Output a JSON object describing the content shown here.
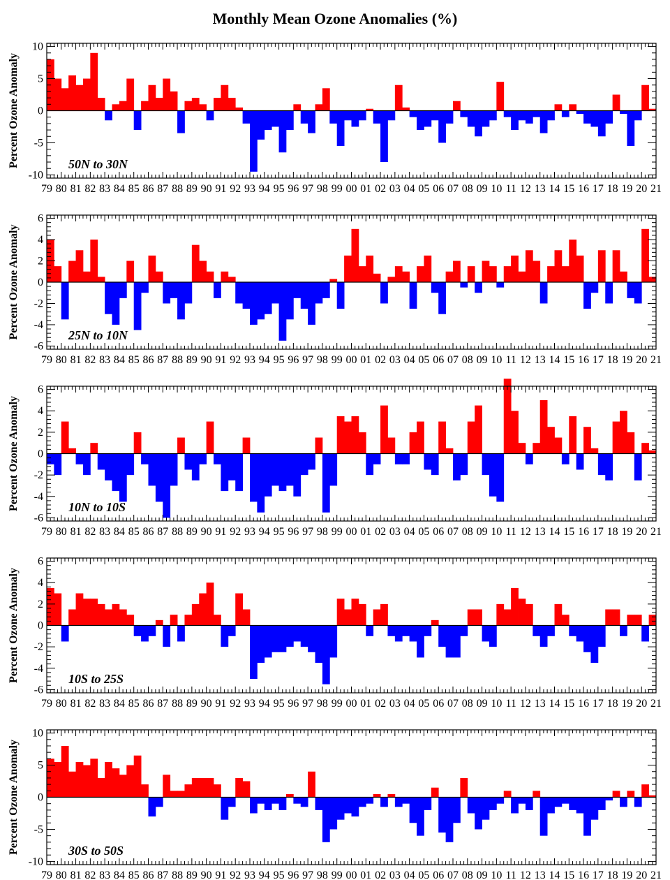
{
  "title": "Monthly Mean Ozone Anomalies (%)",
  "colors": {
    "positive": "#ff0000",
    "negative": "#0000ff",
    "axis": "#000000"
  },
  "chart_data": [
    {
      "type": "bar",
      "region": "50N to 30N",
      "ylabel": "Percent Ozone Anomaly",
      "ylim": [
        -10.5,
        10.5
      ],
      "yticks": [
        -10,
        -5,
        0,
        5,
        10
      ],
      "xlim": [
        1979,
        2021
      ],
      "xticklabels": [
        "79",
        "80",
        "81",
        "82",
        "83",
        "84",
        "85",
        "86",
        "87",
        "88",
        "89",
        "90",
        "91",
        "92",
        "93",
        "94",
        "95",
        "96",
        "97",
        "98",
        "99",
        "00",
        "01",
        "02",
        "03",
        "04",
        "05",
        "06",
        "07",
        "08",
        "09",
        "10",
        "11",
        "12",
        "13",
        "14",
        "15",
        "16",
        "17",
        "18",
        "19",
        "20",
        "21"
      ],
      "x": [
        1979.0,
        1979.5,
        1980.0,
        1980.5,
        1981.0,
        1981.5,
        1982.0,
        1982.5,
        1983.0,
        1983.5,
        1984.0,
        1984.5,
        1985.0,
        1985.5,
        1986.0,
        1986.5,
        1987.0,
        1987.5,
        1988.0,
        1988.5,
        1989.0,
        1989.5,
        1990.0,
        1990.5,
        1991.0,
        1991.5,
        1992.0,
        1992.5,
        1993.0,
        1993.5,
        1994.0,
        1994.5,
        1995.0,
        1995.5,
        1996.0,
        1996.5,
        1997.0,
        1997.5,
        1998.0,
        1998.5,
        1999.0,
        1999.5,
        2000.0,
        2000.5,
        2001.0,
        2001.5,
        2002.0,
        2002.5,
        2003.0,
        2003.5,
        2004.0,
        2004.5,
        2005.0,
        2005.5,
        2006.0,
        2006.5,
        2007.0,
        2007.5,
        2008.0,
        2008.5,
        2009.0,
        2009.5,
        2010.0,
        2010.5,
        2011.0,
        2011.5,
        2012.0,
        2012.5,
        2013.0,
        2013.5,
        2014.0,
        2014.5,
        2015.0,
        2015.5,
        2016.0,
        2016.5,
        2017.0,
        2017.5,
        2018.0,
        2018.5,
        2019.0,
        2019.5,
        2020.0,
        2020.5
      ],
      "values": [
        8.0,
        5.0,
        3.5,
        5.5,
        4.0,
        5.0,
        9.0,
        2.0,
        -1.5,
        1.0,
        1.5,
        5.0,
        -3.0,
        1.5,
        4.0,
        2.0,
        5.0,
        3.0,
        -3.5,
        1.5,
        2.0,
        1.0,
        -1.5,
        2.0,
        4.0,
        2.0,
        0.5,
        -2.0,
        -9.5,
        -4.5,
        -3.0,
        -2.5,
        -6.5,
        -3.0,
        1.0,
        -2.0,
        -3.5,
        1.0,
        3.5,
        -2.0,
        -5.5,
        -1.5,
        -2.5,
        -1.5,
        0.3,
        -2.0,
        -8.0,
        -1.5,
        4.0,
        0.5,
        -1.0,
        -3.0,
        -2.5,
        -1.5,
        -5.0,
        -2.0,
        1.5,
        -1.0,
        -2.5,
        -4.0,
        -2.5,
        -1.5,
        4.5,
        -1.0,
        -3.0,
        -1.5,
        -2.0,
        -1.0,
        -3.5,
        -1.5,
        1.0,
        -1.0,
        1.0,
        -0.5,
        -2.0,
        -2.5,
        -4.0,
        -2.0,
        2.5,
        -0.5,
        -5.5,
        -1.5,
        4.0,
        0.3
      ]
    },
    {
      "type": "bar",
      "region": "25N to 10N",
      "ylabel": "Percent Ozone Anomaly",
      "ylim": [
        -6.3,
        6.3
      ],
      "yticks": [
        -6,
        -4,
        -2,
        0,
        2,
        4,
        6
      ],
      "xlim": [
        1979,
        2021
      ],
      "xticklabels": [
        "79",
        "80",
        "81",
        "82",
        "83",
        "84",
        "85",
        "86",
        "87",
        "88",
        "89",
        "90",
        "91",
        "92",
        "93",
        "94",
        "95",
        "96",
        "97",
        "98",
        "99",
        "00",
        "01",
        "02",
        "03",
        "04",
        "05",
        "06",
        "07",
        "08",
        "09",
        "10",
        "11",
        "12",
        "13",
        "14",
        "15",
        "16",
        "17",
        "18",
        "19",
        "20",
        "21"
      ],
      "x": [
        1979.0,
        1979.5,
        1980.0,
        1980.5,
        1981.0,
        1981.5,
        1982.0,
        1982.5,
        1983.0,
        1983.5,
        1984.0,
        1984.5,
        1985.0,
        1985.5,
        1986.0,
        1986.5,
        1987.0,
        1987.5,
        1988.0,
        1988.5,
        1989.0,
        1989.5,
        1990.0,
        1990.5,
        1991.0,
        1991.5,
        1992.0,
        1992.5,
        1993.0,
        1993.5,
        1994.0,
        1994.5,
        1995.0,
        1995.5,
        1996.0,
        1996.5,
        1997.0,
        1997.5,
        1998.0,
        1998.5,
        1999.0,
        1999.5,
        2000.0,
        2000.5,
        2001.0,
        2001.5,
        2002.0,
        2002.5,
        2003.0,
        2003.5,
        2004.0,
        2004.5,
        2005.0,
        2005.5,
        2006.0,
        2006.5,
        2007.0,
        2007.5,
        2008.0,
        2008.5,
        2009.0,
        2009.5,
        2010.0,
        2010.5,
        2011.0,
        2011.5,
        2012.0,
        2012.5,
        2013.0,
        2013.5,
        2014.0,
        2014.5,
        2015.0,
        2015.5,
        2016.0,
        2016.5,
        2017.0,
        2017.5,
        2018.0,
        2018.5,
        2019.0,
        2019.5,
        2020.0,
        2020.5
      ],
      "values": [
        4.0,
        1.5,
        -3.5,
        2.0,
        3.0,
        1.0,
        4.0,
        0.5,
        -3.0,
        -4.0,
        -1.5,
        2.0,
        -4.5,
        -1.0,
        2.5,
        1.0,
        -2.0,
        -1.5,
        -3.5,
        -2.0,
        3.5,
        2.0,
        1.0,
        -1.5,
        1.0,
        0.5,
        -2.0,
        -2.5,
        -4.0,
        -3.5,
        -3.0,
        -2.0,
        -5.5,
        -3.5,
        -1.5,
        -2.5,
        -4.0,
        -2.0,
        -1.5,
        0.3,
        -2.5,
        2.5,
        5.0,
        1.5,
        2.5,
        0.8,
        -2.0,
        0.5,
        1.5,
        1.0,
        -2.5,
        1.5,
        2.5,
        -1.0,
        -3.0,
        1.0,
        2.0,
        -0.5,
        1.5,
        -1.0,
        2.0,
        1.5,
        -0.5,
        1.5,
        2.5,
        1.0,
        3.0,
        2.0,
        -2.0,
        1.5,
        3.0,
        1.5,
        4.0,
        2.5,
        -2.5,
        -1.0,
        3.0,
        -2.0,
        3.0,
        1.0,
        -1.5,
        -2.0,
        5.0,
        0.5
      ]
    },
    {
      "type": "bar",
      "region": "10N to 10S",
      "ylabel": "Percent Ozone Anomaly",
      "ylim": [
        -6.3,
        6.3
      ],
      "yticks": [
        -6,
        -4,
        -2,
        0,
        2,
        4,
        6
      ],
      "xlim": [
        1979,
        2021
      ],
      "xticklabels": [
        "79",
        "80",
        "81",
        "82",
        "83",
        "84",
        "85",
        "86",
        "87",
        "88",
        "89",
        "90",
        "91",
        "92",
        "93",
        "94",
        "95",
        "96",
        "97",
        "98",
        "99",
        "00",
        "01",
        "02",
        "03",
        "04",
        "05",
        "06",
        "07",
        "08",
        "09",
        "10",
        "11",
        "12",
        "13",
        "14",
        "15",
        "16",
        "17",
        "18",
        "19",
        "20",
        "21"
      ],
      "x": [
        1979.0,
        1979.5,
        1980.0,
        1980.5,
        1981.0,
        1981.5,
        1982.0,
        1982.5,
        1983.0,
        1983.5,
        1984.0,
        1984.5,
        1985.0,
        1985.5,
        1986.0,
        1986.5,
        1987.0,
        1987.5,
        1988.0,
        1988.5,
        1989.0,
        1989.5,
        1990.0,
        1990.5,
        1991.0,
        1991.5,
        1992.0,
        1992.5,
        1993.0,
        1993.5,
        1994.0,
        1994.5,
        1995.0,
        1995.5,
        1996.0,
        1996.5,
        1997.0,
        1997.5,
        1998.0,
        1998.5,
        1999.0,
        1999.5,
        2000.0,
        2000.5,
        2001.0,
        2001.5,
        2002.0,
        2002.5,
        2003.0,
        2003.5,
        2004.0,
        2004.5,
        2005.0,
        2005.5,
        2006.0,
        2006.5,
        2007.0,
        2007.5,
        2008.0,
        2008.5,
        2009.0,
        2009.5,
        2010.0,
        2010.5,
        2011.0,
        2011.5,
        2012.0,
        2012.5,
        2013.0,
        2013.5,
        2014.0,
        2014.5,
        2015.0,
        2015.5,
        2016.0,
        2016.5,
        2017.0,
        2017.5,
        2018.0,
        2018.5,
        2019.0,
        2019.5,
        2020.0,
        2020.5
      ],
      "values": [
        -1.0,
        -2.0,
        3.0,
        0.5,
        -1.0,
        -2.0,
        1.0,
        -1.5,
        -2.5,
        -3.5,
        -4.5,
        -2.0,
        2.0,
        -1.0,
        -3.0,
        -4.5,
        -6.0,
        -3.0,
        1.5,
        -1.5,
        -2.5,
        -1.0,
        3.0,
        -1.0,
        -3.5,
        -2.5,
        -3.5,
        1.5,
        -4.5,
        -5.5,
        -4.0,
        -3.0,
        -3.5,
        -3.0,
        -4.0,
        -2.0,
        -1.5,
        1.5,
        -5.5,
        -3.0,
        3.5,
        3.0,
        3.5,
        2.0,
        -2.0,
        -1.0,
        4.5,
        1.5,
        -1.0,
        -1.0,
        2.0,
        3.0,
        -1.5,
        -2.0,
        3.0,
        0.5,
        -2.5,
        -2.0,
        3.0,
        4.5,
        -2.0,
        -4.0,
        -4.5,
        7.0,
        4.0,
        1.0,
        -1.0,
        1.0,
        5.0,
        2.5,
        1.5,
        -1.0,
        3.5,
        -1.5,
        2.5,
        0.5,
        -2.0,
        -2.5,
        3.0,
        4.0,
        2.0,
        -2.5,
        1.0,
        0.3
      ]
    },
    {
      "type": "bar",
      "region": "10S to 25S",
      "ylabel": "Percent Ozone Anomaly",
      "ylim": [
        -6.3,
        6.3
      ],
      "yticks": [
        -6,
        -4,
        -2,
        0,
        2,
        4,
        6
      ],
      "xlim": [
        1979,
        2021
      ],
      "xticklabels": [
        "79",
        "80",
        "81",
        "82",
        "83",
        "84",
        "85",
        "86",
        "87",
        "88",
        "89",
        "90",
        "91",
        "92",
        "93",
        "94",
        "95",
        "96",
        "97",
        "98",
        "99",
        "00",
        "01",
        "02",
        "03",
        "04",
        "05",
        "06",
        "07",
        "08",
        "09",
        "10",
        "11",
        "12",
        "13",
        "14",
        "15",
        "16",
        "17",
        "18",
        "19",
        "20",
        "21"
      ],
      "x": [
        1979.0,
        1979.5,
        1980.0,
        1980.5,
        1981.0,
        1981.5,
        1982.0,
        1982.5,
        1983.0,
        1983.5,
        1984.0,
        1984.5,
        1985.0,
        1985.5,
        1986.0,
        1986.5,
        1987.0,
        1987.5,
        1988.0,
        1988.5,
        1989.0,
        1989.5,
        1990.0,
        1990.5,
        1991.0,
        1991.5,
        1992.0,
        1992.5,
        1993.0,
        1993.5,
        1994.0,
        1994.5,
        1995.0,
        1995.5,
        1996.0,
        1996.5,
        1997.0,
        1997.5,
        1998.0,
        1998.5,
        1999.0,
        1999.5,
        2000.0,
        2000.5,
        2001.0,
        2001.5,
        2002.0,
        2002.5,
        2003.0,
        2003.5,
        2004.0,
        2004.5,
        2005.0,
        2005.5,
        2006.0,
        2006.5,
        2007.0,
        2007.5,
        2008.0,
        2008.5,
        2009.0,
        2009.5,
        2010.0,
        2010.5,
        2011.0,
        2011.5,
        2012.0,
        2012.5,
        2013.0,
        2013.5,
        2014.0,
        2014.5,
        2015.0,
        2015.5,
        2016.0,
        2016.5,
        2017.0,
        2017.5,
        2018.0,
        2018.5,
        2019.0,
        2019.5,
        2020.0,
        2020.5
      ],
      "values": [
        3.5,
        3.0,
        -1.5,
        1.5,
        3.0,
        2.5,
        2.5,
        2.0,
        1.5,
        2.0,
        1.5,
        1.0,
        -1.0,
        -1.5,
        -1.0,
        0.5,
        -2.0,
        1.0,
        -1.5,
        1.0,
        2.0,
        3.0,
        4.0,
        1.0,
        -2.0,
        -1.0,
        3.0,
        1.5,
        -5.0,
        -3.5,
        -3.0,
        -2.5,
        -2.5,
        -2.0,
        -1.5,
        -2.0,
        -2.5,
        -3.5,
        -5.5,
        -3.0,
        2.5,
        1.5,
        2.5,
        2.0,
        -1.0,
        1.5,
        2.0,
        -1.0,
        -1.5,
        -1.0,
        -1.5,
        -3.0,
        -1.0,
        0.5,
        -2.0,
        -3.0,
        -3.0,
        -1.0,
        1.5,
        1.5,
        -1.5,
        -2.0,
        2.0,
        1.5,
        3.5,
        2.5,
        2.0,
        -1.0,
        -2.0,
        -1.0,
        2.0,
        1.0,
        -1.0,
        -1.5,
        -2.5,
        -3.5,
        -2.0,
        1.5,
        1.5,
        -1.0,
        1.0,
        1.0,
        -1.5,
        1.0
      ]
    },
    {
      "type": "bar",
      "region": "30S to 50S",
      "ylabel": "Percent Ozone Anomaly",
      "ylim": [
        -10.5,
        10.5
      ],
      "yticks": [
        -10,
        -5,
        0,
        5,
        10
      ],
      "xlim": [
        1979,
        2021
      ],
      "xticklabels": [
        "79",
        "80",
        "81",
        "82",
        "83",
        "84",
        "85",
        "86",
        "87",
        "88",
        "89",
        "90",
        "91",
        "92",
        "93",
        "94",
        "95",
        "96",
        "97",
        "98",
        "99",
        "00",
        "01",
        "02",
        "03",
        "04",
        "05",
        "06",
        "07",
        "08",
        "09",
        "10",
        "11",
        "12",
        "13",
        "14",
        "15",
        "16",
        "17",
        "18",
        "19",
        "20",
        "21"
      ],
      "x": [
        1979.0,
        1979.5,
        1980.0,
        1980.5,
        1981.0,
        1981.5,
        1982.0,
        1982.5,
        1983.0,
        1983.5,
        1984.0,
        1984.5,
        1985.0,
        1985.5,
        1986.0,
        1986.5,
        1987.0,
        1987.5,
        1988.0,
        1988.5,
        1989.0,
        1989.5,
        1990.0,
        1990.5,
        1991.0,
        1991.5,
        1992.0,
        1992.5,
        1993.0,
        1993.5,
        1994.0,
        1994.5,
        1995.0,
        1995.5,
        1996.0,
        1996.5,
        1997.0,
        1997.5,
        1998.0,
        1998.5,
        1999.0,
        1999.5,
        2000.0,
        2000.5,
        2001.0,
        2001.5,
        2002.0,
        2002.5,
        2003.0,
        2003.5,
        2004.0,
        2004.5,
        2005.0,
        2005.5,
        2006.0,
        2006.5,
        2007.0,
        2007.5,
        2008.0,
        2008.5,
        2009.0,
        2009.5,
        2010.0,
        2010.5,
        2011.0,
        2011.5,
        2012.0,
        2012.5,
        2013.0,
        2013.5,
        2014.0,
        2014.5,
        2015.0,
        2015.5,
        2016.0,
        2016.5,
        2017.0,
        2017.5,
        2018.0,
        2018.5,
        2019.0,
        2019.5,
        2020.0,
        2020.5
      ],
      "values": [
        6.0,
        5.5,
        8.0,
        4.0,
        5.5,
        5.0,
        6.0,
        3.0,
        5.5,
        4.5,
        3.5,
        5.0,
        6.5,
        2.0,
        -3.0,
        -1.5,
        3.5,
        1.0,
        1.0,
        2.0,
        3.0,
        3.0,
        3.0,
        2.0,
        -3.5,
        -1.5,
        3.0,
        2.5,
        -2.5,
        -1.0,
        -2.0,
        -1.0,
        -2.0,
        0.5,
        -1.0,
        -1.5,
        4.0,
        -2.0,
        -7.0,
        -5.0,
        -3.5,
        -2.5,
        -3.0,
        -1.5,
        -1.0,
        0.5,
        -1.5,
        0.5,
        -1.5,
        -1.0,
        -4.0,
        -6.0,
        -2.0,
        1.5,
        -5.5,
        -7.0,
        -4.0,
        3.0,
        -2.5,
        -5.0,
        -3.5,
        -2.0,
        -1.0,
        1.0,
        -2.5,
        -1.0,
        -2.0,
        1.0,
        -6.0,
        -2.5,
        -1.5,
        -1.0,
        -2.0,
        -2.5,
        -6.0,
        -3.5,
        -2.0,
        -0.5,
        1.0,
        -1.5,
        1.0,
        -1.5,
        2.0,
        0.3
      ]
    }
  ]
}
